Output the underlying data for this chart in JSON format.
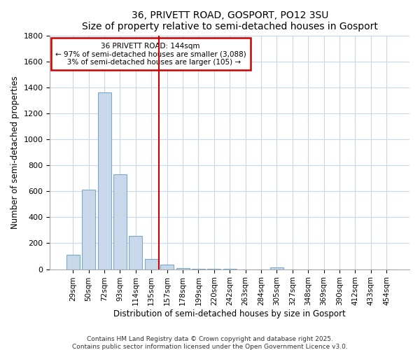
{
  "title": "36, PRIVETT ROAD, GOSPORT, PO12 3SU",
  "subtitle": "Size of property relative to semi-detached houses in Gosport",
  "xlabel": "Distribution of semi-detached houses by size in Gosport",
  "ylabel": "Number of semi-detached properties",
  "categories": [
    "29sqm",
    "50sqm",
    "72sqm",
    "93sqm",
    "114sqm",
    "135sqm",
    "157sqm",
    "178sqm",
    "199sqm",
    "220sqm",
    "242sqm",
    "263sqm",
    "284sqm",
    "305sqm",
    "327sqm",
    "348sqm",
    "369sqm",
    "390sqm",
    "412sqm",
    "433sqm",
    "454sqm"
  ],
  "values": [
    110,
    610,
    1360,
    730,
    255,
    80,
    35,
    10,
    5,
    3,
    2,
    0,
    0,
    15,
    0,
    0,
    0,
    0,
    0,
    0,
    0
  ],
  "bar_color": "#c8d8ea",
  "bar_edge_color": "#7aaac8",
  "annotation_text": "36 PRIVETT ROAD: 144sqm\n← 97% of semi-detached houses are smaller (3,088)\n   3% of semi-detached houses are larger (105) →",
  "annotation_box_color": "#ffffff",
  "annotation_box_edge": "#cc0000",
  "vertical_line_x": 5.5,
  "vertical_line_color": "#cc0000",
  "ylim": [
    0,
    1800
  ],
  "yticks": [
    0,
    200,
    400,
    600,
    800,
    1000,
    1200,
    1400,
    1600,
    1800
  ],
  "background_color": "#ffffff",
  "plot_bg_color": "#ffffff",
  "grid_color": "#c8d8ea",
  "footer1": "Contains HM Land Registry data © Crown copyright and database right 2025.",
  "footer2": "Contains public sector information licensed under the Open Government Licence v3.0."
}
